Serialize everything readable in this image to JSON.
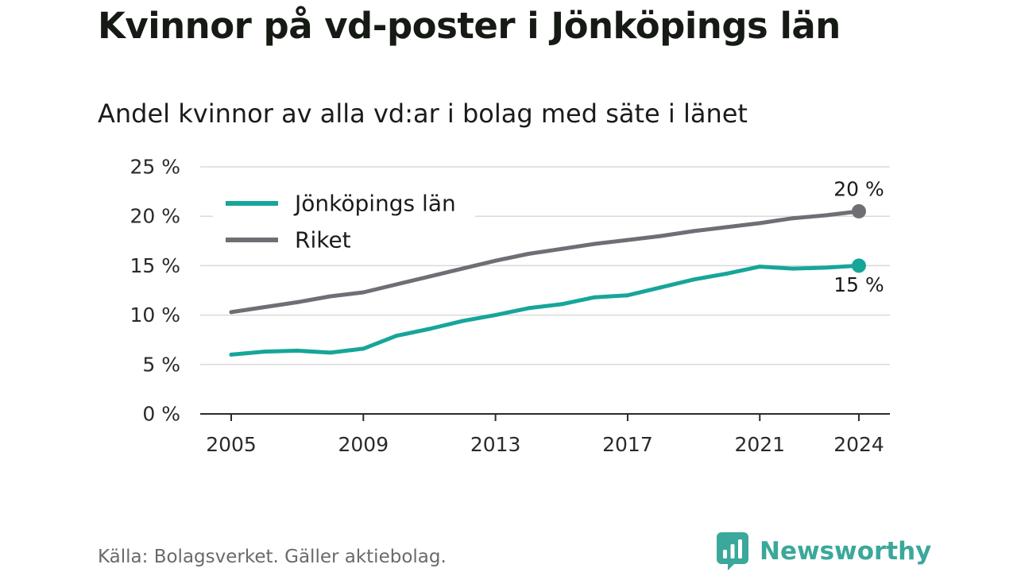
{
  "header": {
    "title": "Kvinnor på vd-poster i Jönköpings län",
    "subtitle": "Andel kvinnor av alla vd:ar i bolag med säte i länet"
  },
  "footer": {
    "source": "Källa: Bolagsverket. Gäller aktiebolag.",
    "brand": "Newsworthy",
    "brand_icon": "bar-chart-speech-bubble-icon",
    "brand_color": "#3aa89a"
  },
  "chart_data": {
    "type": "line",
    "title": "Kvinnor på vd-poster i Jönköpings län",
    "subtitle": "Andel kvinnor av alla vd:ar i bolag med säte i länet",
    "xlabel": "",
    "ylabel": "",
    "x": [
      2005,
      2006,
      2007,
      2008,
      2009,
      2010,
      2011,
      2012,
      2013,
      2014,
      2015,
      2016,
      2017,
      2018,
      2019,
      2020,
      2021,
      2022,
      2023,
      2024
    ],
    "xlim": [
      2005,
      2024
    ],
    "ylim": [
      0,
      25
    ],
    "x_ticks": [
      "2005",
      "2009",
      "2013",
      "2017",
      "2021",
      "2024"
    ],
    "y_ticks": [
      "0 %",
      "5 %",
      "10 %",
      "15 %",
      "20 %",
      "25 %"
    ],
    "grid": true,
    "legend_position": "top-left",
    "series": [
      {
        "name": "Jönköpings län",
        "color": "#17a59a",
        "values": [
          6.0,
          6.3,
          6.4,
          6.2,
          6.6,
          7.9,
          8.6,
          9.4,
          10.0,
          10.7,
          11.1,
          11.8,
          12.0,
          12.8,
          13.6,
          14.2,
          14.9,
          14.7,
          14.8,
          15.0
        ],
        "end_label": "15 %"
      },
      {
        "name": "Riket",
        "color": "#6f6e74",
        "values": [
          10.3,
          10.8,
          11.3,
          11.9,
          12.3,
          13.1,
          13.9,
          14.7,
          15.5,
          16.2,
          16.7,
          17.2,
          17.6,
          18.0,
          18.5,
          18.9,
          19.3,
          19.8,
          20.1,
          20.5
        ],
        "end_label": "20 %"
      }
    ]
  }
}
